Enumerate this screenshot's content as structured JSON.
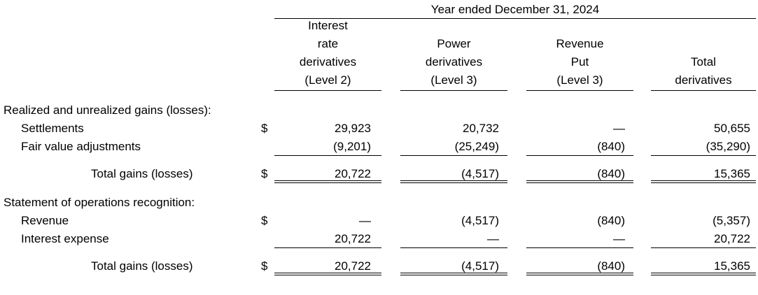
{
  "header": {
    "period": "Year ended December 31, 2024",
    "columns": [
      [
        "Interest",
        "rate",
        "derivatives",
        "(Level 2)"
      ],
      [
        "Power",
        "derivatives",
        "(Level 3)"
      ],
      [
        "Revenue",
        "Put",
        "(Level 3)"
      ],
      [
        "Total",
        "derivatives"
      ]
    ]
  },
  "sections": [
    {
      "title": "Realized and unrealized gains (losses):",
      "rows": [
        {
          "label": "Settlements",
          "currency": "$",
          "values": [
            "29,923",
            "20,732",
            "—",
            "50,655"
          ]
        },
        {
          "label": "Fair value adjustments",
          "values": [
            "(9,201)",
            "(25,249)",
            "(840)",
            "(35,290)"
          ]
        }
      ],
      "total": {
        "label": "Total gains (losses)",
        "currency": "$",
        "values": [
          "20,722",
          "(4,517)",
          "(840)",
          "15,365"
        ]
      }
    },
    {
      "title": "Statement of operations recognition:",
      "rows": [
        {
          "label": "Revenue",
          "currency": "$",
          "values": [
            "—",
            "(4,517)",
            "(840)",
            "(5,357)"
          ]
        },
        {
          "label": "Interest expense",
          "values": [
            "20,722",
            "—",
            "—",
            "20,722"
          ]
        }
      ],
      "total": {
        "label": "Total gains (losses)",
        "currency": "$",
        "values": [
          "20,722",
          "(4,517)",
          "(840)",
          "15,365"
        ]
      }
    }
  ]
}
